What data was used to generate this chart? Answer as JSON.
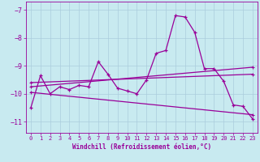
{
  "xlabel": "Windchill (Refroidissement éolien,°C)",
  "bg_color": "#c8eaf0",
  "line_color": "#990099",
  "grid_color": "#aaccdd",
  "xlim": [
    -0.5,
    23.5
  ],
  "ylim": [
    -11.4,
    -6.7
  ],
  "yticks": [
    -7,
    -8,
    -9,
    -10,
    -11
  ],
  "xticks": [
    0,
    1,
    2,
    3,
    4,
    5,
    6,
    7,
    8,
    9,
    10,
    11,
    12,
    13,
    14,
    15,
    16,
    17,
    18,
    19,
    20,
    21,
    22,
    23
  ],
  "series": [
    [
      0,
      -10.5
    ],
    [
      1,
      -9.35
    ],
    [
      2,
      -10.0
    ],
    [
      3,
      -9.75
    ],
    [
      4,
      -9.85
    ],
    [
      5,
      -9.7
    ],
    [
      6,
      -9.75
    ],
    [
      7,
      -8.85
    ],
    [
      8,
      -9.3
    ],
    [
      9,
      -9.8
    ],
    [
      10,
      -9.9
    ],
    [
      11,
      -10.0
    ],
    [
      12,
      -9.5
    ],
    [
      13,
      -8.55
    ],
    [
      14,
      -8.45
    ],
    [
      15,
      -7.2
    ],
    [
      16,
      -7.25
    ],
    [
      17,
      -7.8
    ],
    [
      18,
      -9.1
    ],
    [
      19,
      -9.1
    ],
    [
      20,
      -9.55
    ],
    [
      21,
      -10.4
    ],
    [
      22,
      -10.45
    ],
    [
      23,
      -10.9
    ]
  ],
  "trend_lines": [
    {
      "x": [
        0,
        23
      ],
      "y": [
        -9.6,
        -9.3
      ]
    },
    {
      "x": [
        0,
        23
      ],
      "y": [
        -9.75,
        -9.05
      ]
    },
    {
      "x": [
        0,
        23
      ],
      "y": [
        -9.95,
        -10.75
      ]
    }
  ]
}
